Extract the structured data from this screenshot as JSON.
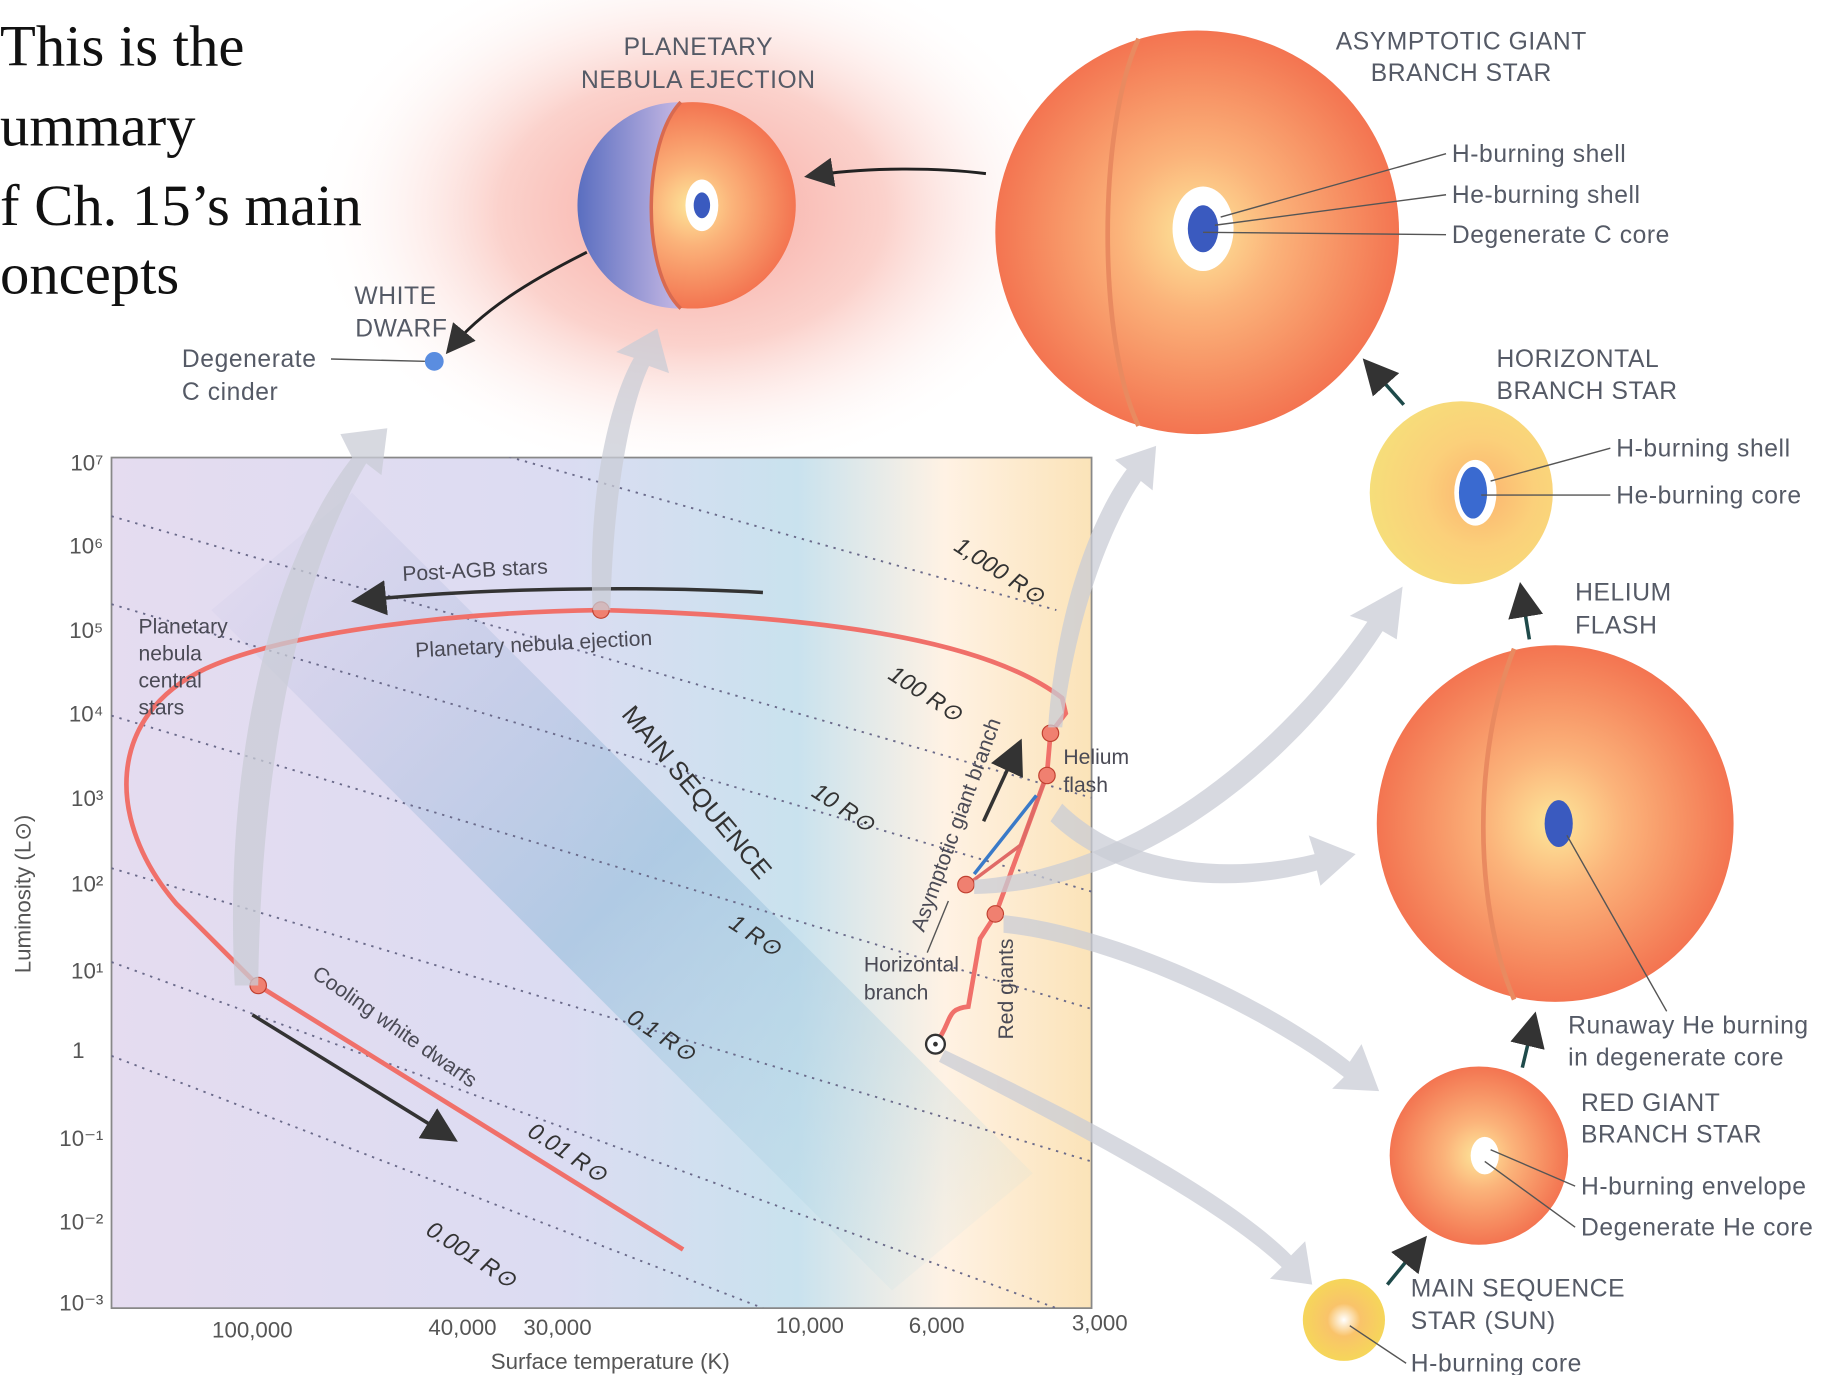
{
  "intro": {
    "lines": [
      "This is the",
      "ummary",
      "f Ch. 15’s main",
      "oncepts"
    ]
  },
  "stages": {
    "planetary_nebula": {
      "title": [
        "PLANETARY",
        "NEBULA EJECTION"
      ]
    },
    "white_dwarf": {
      "title": [
        "WHITE",
        "DWARF"
      ],
      "labels": [
        "Degenerate",
        "C cinder"
      ]
    },
    "agb_star": {
      "title": [
        "ASYMPTOTIC GIANT",
        "BRANCH STAR"
      ],
      "labels": [
        "H-burning shell",
        "He-burning shell",
        "Degenerate C core"
      ]
    },
    "horizontal_branch_star": {
      "title": [
        "HORIZONTAL",
        "BRANCH STAR"
      ],
      "labels": [
        "H-burning shell",
        "He-burning core"
      ]
    },
    "helium_flash": {
      "title": [
        "HELIUM",
        "FLASH"
      ],
      "labels": [
        "Runaway He burning",
        "in degenerate core"
      ]
    },
    "red_giant_branch_star": {
      "title": [
        "RED GIANT",
        "BRANCH STAR"
      ],
      "labels": [
        "H-burning envelope",
        "Degenerate He core"
      ]
    },
    "main_sequence_star": {
      "title": [
        "MAIN SEQUENCE",
        "STAR (SUN)"
      ],
      "labels": [
        "H-burning core"
      ]
    }
  },
  "hr_diagram": {
    "y_axis": {
      "title": "Luminosity (L⊙)",
      "ticks": [
        "10⁷",
        "10⁶",
        "10⁵",
        "10⁴",
        "10³",
        "10²",
        "10¹",
        "1",
        "10⁻¹",
        "10⁻²",
        "10⁻³"
      ]
    },
    "x_axis": {
      "title": "Surface temperature (K)",
      "ticks": [
        "100,000",
        "40,000",
        "30,000",
        "10,000",
        "6,000",
        "3,000"
      ]
    },
    "radius_lines": [
      "1,000 R⊙",
      "100 R⊙",
      "10 R⊙",
      "1 R⊙",
      "0.1 R⊙",
      "0.01 R⊙",
      "0.001 R⊙"
    ],
    "annotations": {
      "post_agb": "Post-AGB stars",
      "pn_ejection": "Planetary nebula ejection",
      "pn_central_stars": [
        "Planetary",
        "nebula",
        "central",
        "stars"
      ],
      "main_sequence": "MAIN SEQUENCE",
      "cooling_white_dwarfs": "Cooling white dwarfs",
      "asymptotic_giant_branch": "Asymptotic giant branch",
      "helium_flash": [
        "Helium",
        "flash"
      ],
      "horizontal_branch": [
        "Horizontal",
        "branch"
      ],
      "red_giants": "Red giants"
    }
  }
}
